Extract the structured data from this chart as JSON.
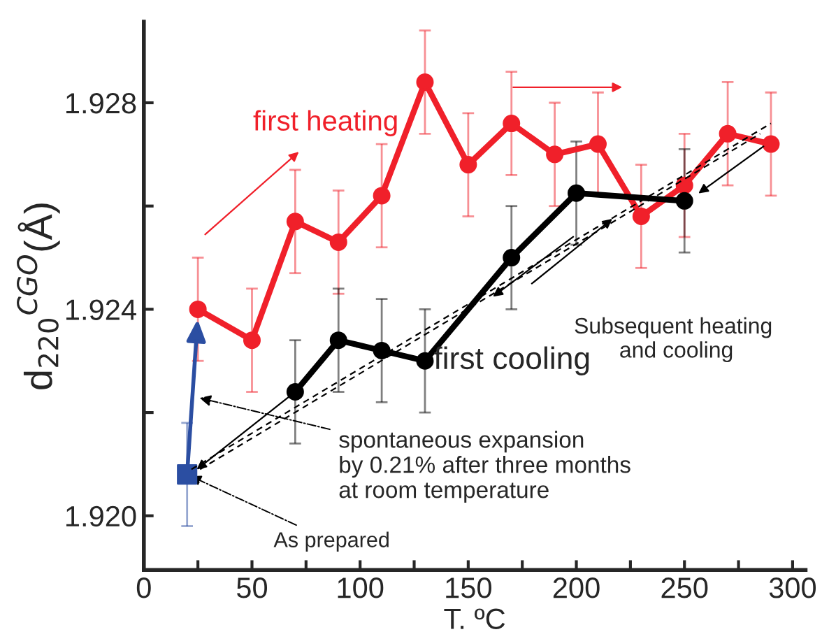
{
  "chart_data": {
    "type": "line",
    "xlabel": "T. ºC",
    "ylabel": "d$_{220}$$^{CGO}$(Å)",
    "xlim": [
      0,
      306
    ],
    "ylim": [
      1.91895,
      1.92957
    ],
    "xticks": [
      0,
      {
        "value": 25,
        "label": null
      },
      50,
      {
        "value": 75,
        "label": null
      },
      100,
      {
        "value": 125,
        "label": null
      },
      150,
      {
        "value": 175,
        "label": null
      },
      200,
      {
        "value": 225,
        "label": null
      },
      250,
      {
        "value": 275,
        "label": null
      },
      300
    ],
    "yticks": [
      {
        "value": 1.92,
        "label": "1.920"
      },
      {
        "value": 1.922,
        "label": null
      },
      {
        "value": 1.924,
        "label": "1.924"
      },
      {
        "value": 1.926,
        "label": null
      },
      {
        "value": 1.928,
        "label": "1.928"
      }
    ],
    "grid": false,
    "series": [
      {
        "color": "#f0202a",
        "marker": "circle",
        "line_style": "solid",
        "x": [
          25,
          50,
          70,
          90,
          110,
          130,
          150,
          170,
          190,
          210,
          230,
          250,
          270,
          290
        ],
        "values": [
          1.924,
          1.9234,
          1.9257,
          1.9253,
          1.9262,
          1.9284,
          1.9268,
          1.9276,
          1.927,
          1.9272,
          1.9258,
          1.9264,
          1.9274,
          1.9272
        ],
        "errors": [
          0.001,
          0.001,
          0.001,
          0.001,
          0.001,
          0.001,
          0.001,
          0.001,
          0.001,
          0.001,
          0.001,
          0.001,
          0.001,
          0.001
        ]
      },
      {
        "color": "#000000",
        "marker": "circle",
        "line_style": "solid",
        "x": [
          70,
          90,
          110,
          130,
          170,
          200,
          250
        ],
        "values": [
          1.9224,
          1.9234,
          1.9232,
          1.923,
          1.925,
          1.92625,
          1.9261
        ],
        "errors": [
          0.001,
          0.001,
          0.001,
          0.001,
          0.001,
          0.001,
          0.001
        ]
      },
      {
        "type": "scatter",
        "color": "#2b4ea2",
        "marker": "square",
        "x": [
          20
        ],
        "values": [
          1.9208
        ],
        "errors": [
          0.001
        ]
      },
      {
        "color": "#000000",
        "marker": "none",
        "line_style": "dashed",
        "x": [
          22,
          290
        ],
        "values": [
          1.9209,
          1.9276
        ]
      },
      {
        "color": "#000000",
        "marker": "none",
        "line_style": "dashed",
        "x": [
          26,
          285
        ],
        "values": [
          1.9209,
          1.9274
        ]
      }
    ],
    "annotations": [
      "first heating",
      {
        "text": "first cooling",
        "x": 130,
        "y": 1.923
      },
      "Subsequent heating\n and cooling",
      "spontaneous expansion\nby 0.21% after three months\nat room temperature",
      {
        "text": "As prepared",
        "x": 20,
        "y": 1.9208
      }
    ]
  }
}
